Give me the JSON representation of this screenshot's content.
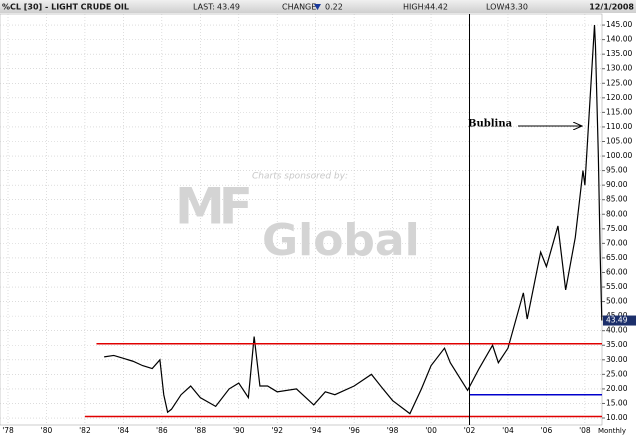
{
  "header": {
    "title": "%CL [30] - LIGHT CRUDE OIL",
    "stats": [
      {
        "label": "LAST:",
        "value": "43.49"
      },
      {
        "label": "CHANGE:",
        "value": "0.22"
      },
      {
        "label": "HIGH:",
        "value": "44.42"
      },
      {
        "label": "LOW:",
        "value": "43.30"
      }
    ],
    "date": "12/1/2008"
  },
  "chart_data": {
    "type": "line",
    "x": [
      1983.0,
      1983.5,
      1984.0,
      1984.5,
      1985.0,
      1985.5,
      1985.9,
      1986.1,
      1986.3,
      1986.5,
      1987.0,
      1987.5,
      1988.0,
      1988.8,
      1989.5,
      1990.0,
      1990.5,
      1990.8,
      1991.1,
      1991.5,
      1992.0,
      1993.0,
      1993.9,
      1994.5,
      1995.0,
      1996.0,
      1996.9,
      1997.5,
      1998.0,
      1998.9,
      1999.5,
      2000.0,
      2000.7,
      2001.0,
      2001.9,
      2002.5,
      2003.2,
      2003.5,
      2004.0,
      2004.8,
      2005.0,
      2005.7,
      2006.0,
      2006.6,
      2007.0,
      2007.5,
      2007.9,
      2008.0,
      2008.5,
      2008.55,
      2008.7,
      2008.8,
      2008.88
    ],
    "values": [
      31,
      31.5,
      30.5,
      29.5,
      28,
      27,
      30,
      18,
      12,
      13,
      18,
      21,
      17,
      14,
      20,
      22,
      17,
      38,
      21,
      21,
      19,
      20,
      14.5,
      19,
      18,
      21,
      25,
      20,
      16,
      11.5,
      20,
      28,
      34,
      29,
      19.5,
      27,
      35,
      29,
      34,
      53,
      44,
      67,
      62,
      76,
      54,
      72,
      95,
      90,
      145,
      138,
      100,
      65,
      43.49
    ],
    "color": "#000000",
    "xlim": [
      1977.584,
      2008.89
    ],
    "ylim": [
      7.6,
      148.8
    ],
    "xticks": [
      {
        "value": 1978,
        "label": "'78"
      },
      {
        "value": 1980,
        "label": "'80"
      },
      {
        "value": 1982,
        "label": "'82"
      },
      {
        "value": 1984,
        "label": "'84"
      },
      {
        "value": 1986,
        "label": "'86"
      },
      {
        "value": 1988,
        "label": "'88"
      },
      {
        "value": 1990,
        "label": "'90"
      },
      {
        "value": 1992,
        "label": "'92"
      },
      {
        "value": 1994,
        "label": "'94"
      },
      {
        "value": 1996,
        "label": "'96"
      },
      {
        "value": 1998,
        "label": "'98"
      },
      {
        "value": 2000,
        "label": "'00"
      },
      {
        "value": 2002,
        "label": "'02"
      },
      {
        "value": 2004,
        "label": "'04"
      },
      {
        "value": 2006,
        "label": "'06"
      },
      {
        "value": 2008,
        "label": "'08"
      }
    ],
    "yticks": [
      {
        "value": 10,
        "label": "10.00"
      },
      {
        "value": 15,
        "label": "15.00"
      },
      {
        "value": 20,
        "label": "20.00"
      },
      {
        "value": 25,
        "label": "25.00"
      },
      {
        "value": 30,
        "label": "30.00"
      },
      {
        "value": 35,
        "label": "35.00"
      },
      {
        "value": 40,
        "label": "40.00"
      },
      {
        "value": 45,
        "label": "45.00"
      },
      {
        "value": 50,
        "label": "50.00"
      },
      {
        "value": 55,
        "label": "55.00"
      },
      {
        "value": 60,
        "label": "60.00"
      },
      {
        "value": 65,
        "label": "65.00"
      },
      {
        "value": 70,
        "label": "70.00"
      },
      {
        "value": 75,
        "label": "75.00"
      },
      {
        "value": 80,
        "label": "80.00"
      },
      {
        "value": 85,
        "label": "85.00"
      },
      {
        "value": 90,
        "label": "90.00"
      },
      {
        "value": 95,
        "label": "95.00"
      },
      {
        "value": 100,
        "label": "100.00"
      },
      {
        "value": 105,
        "label": "105.00"
      },
      {
        "value": 110,
        "label": "110.00"
      },
      {
        "value": 115,
        "label": "115.00"
      },
      {
        "value": 120,
        "label": "120.00"
      },
      {
        "value": 125,
        "label": "125.00"
      },
      {
        "value": 130,
        "label": "130.00"
      },
      {
        "value": 135,
        "label": "135.00"
      },
      {
        "value": 140,
        "label": "140.00"
      },
      {
        "value": 145,
        "label": "145.00"
      }
    ],
    "grid": true,
    "last": {
      "value": 43.49,
      "label": "43.49"
    },
    "period": "Monthly",
    "reference_lines": [
      {
        "value": 35.5,
        "from": 1982.6,
        "color": "#e00000"
      },
      {
        "value": 10.5,
        "from": 1982.0,
        "color": "#e00000"
      },
      {
        "value": 18,
        "from": 2002,
        "color": "#0000cc"
      }
    ],
    "marker_x": 2002,
    "annotation": "Bublina",
    "watermark": {
      "caption": "Charts sponsored by:",
      "logo_top": "MF",
      "logo_bottom": "Global"
    }
  }
}
